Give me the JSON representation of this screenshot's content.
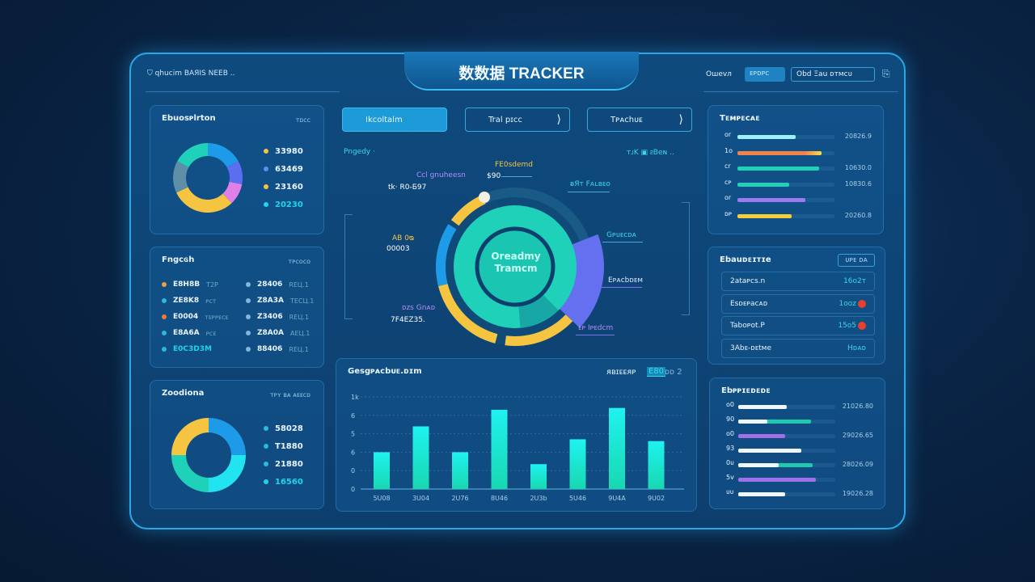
{
  "header": {
    "title": "数数据 TRACKER",
    "left_label": "qhucim BAЯIS NEEB ..",
    "user_label": "Ошеvл",
    "primary_button": "ᴇᴘᴅᴘᴄ",
    "secondary_field": "Obd Ξau  ᴅᴛᴍᴄᴜ"
  },
  "center_tabs": [
    {
      "label": "Ikcoltalm",
      "active": true
    },
    {
      "label": "Tral pɪᴄᴄ",
      "active": false
    },
    {
      "label": "Tᴘᴀᴄhᴜᴇ",
      "active": false
    }
  ],
  "left_panel_1": {
    "title": "Ebuosᴘlrton",
    "subtitle": "ᴛᴅᴄᴄ",
    "legend": [
      {
        "value": "33980",
        "color": "#f5c542"
      },
      {
        "value": "63469",
        "color": "#5b8ef0"
      },
      {
        "value": "23160",
        "color": "#f5c542"
      },
      {
        "value": "20230",
        "color": "#22d3ee"
      }
    ]
  },
  "left_panel_2": {
    "title": "Fngcɢh",
    "subtitle": "ᴛᴘᴄᴏᴄᴏ",
    "left_items": [
      {
        "label": "E8H8B",
        "meta": "T2P",
        "color": "#f0a040"
      },
      {
        "label": "ZE8K8",
        "meta": "ᴘᴄᴛ",
        "color": "#2ab8e0"
      },
      {
        "label": "E0004",
        "meta": "ᴛᴇᴘᴘᴇᴄᴇ",
        "color": "#f07a30"
      },
      {
        "label": "E8A6A",
        "meta": "ᴘᴄᴇ",
        "color": "#2ab8e0"
      },
      {
        "label": "E0C3D3M",
        "meta": "",
        "color": "#2ab8e0"
      }
    ],
    "right_items": [
      {
        "label": "28406",
        "meta": "REЦ.1"
      },
      {
        "label": "Z8A3A",
        "meta": "TECЦ.1"
      },
      {
        "label": "Z3406",
        "meta": "REЦ.1"
      },
      {
        "label": "Z8A0A",
        "meta": "AEЦ.1"
      },
      {
        "label": "88406",
        "meta": "REЦ.1"
      }
    ]
  },
  "left_panel_3": {
    "title": "Zoodiona",
    "subtitle": "ᴛᴘʏ ʙᴀ ᴀᴇᴇᴄᴅ",
    "legend": [
      {
        "value": "58028",
        "color": "#2ab8e0"
      },
      {
        "value": "T1880",
        "color": "#2ab8e0"
      },
      {
        "value": "21880",
        "color": "#2ab8e0"
      },
      {
        "value": "16560",
        "color": "#22d3ee"
      }
    ]
  },
  "center_chart": {
    "header_left": "Pngedy ·",
    "header_right": "ᴛᴊK ▣ ᴤBeɴ ..",
    "center_label_1": "Oreadmy",
    "center_label_2": "Tramcm",
    "labels": {
      "a_title": "Ccl gnuheesn",
      "a_value": "tk· R0-Б97",
      "b_title": "FE0sdemd",
      "b_value": "$90",
      "c_title": "ᴃЯᴛ Fᴀʟʙᴇᴏ",
      "d_title": "Gᴘᴜᴇcᴅᴀ",
      "e_title": "Eᴘᴀcbᴅᴇᴍ",
      "f_title": "ᴇᴘ Iᴘᴇdᴄm",
      "g_title": "AB 0ᴓ",
      "g_value": "00003",
      "h_title": "ᴅᴢs Gnᴀᴅ",
      "h_value": "7F4EZ35."
    }
  },
  "bar_panel": {
    "title": "Gesgᴘᴀᴄbᴜᴇ.ᴅɪm",
    "filter_label": "ᴙʙɪᴇᴇᴙᴘ",
    "filter_value": "E80",
    "filter_extra": "ᴅᴅ 2"
  },
  "right_panel_1": {
    "title": "Tᴇᴍᴘᴇᴄᴀᴇ",
    "rows": [
      {
        "label": "ᴏr",
        "value": "20826.9"
      },
      {
        "label": "1o",
        "value": ""
      },
      {
        "label": "ᴄr",
        "value": "10630.0"
      },
      {
        "label": "ᴄᴘ",
        "value": "10830.6"
      },
      {
        "label": "ᴏr",
        "value": ""
      },
      {
        "label": "ᴅᴘ",
        "value": "20260.8"
      }
    ]
  },
  "right_panel_2": {
    "title": "Ebauᴅᴇɪᴛɪe",
    "button": "ᴜᴘᴇ ᴅᴀ",
    "rows": [
      {
        "label": "2ataᴘcs.n",
        "value": "16o2ᴛ",
        "alert": false
      },
      {
        "label": "Esᴅᴇᴘaᴄᴀᴅ",
        "value": "1ᴏᴏᴢ",
        "alert": true
      },
      {
        "label": "Tabᴏᴘᴏt.P",
        "value": "15o5",
        "alert": true
      },
      {
        "label": "3Abᴇ-ᴅᴇtᴍe",
        "value": "Hᴅᴀᴅ",
        "alert": false
      }
    ]
  },
  "right_panel_3": {
    "title": "Ebᴘᴘɪᴇᴅᴇᴅᴇ",
    "rows": [
      {
        "label": "ᴏ0",
        "value": "21026.80"
      },
      {
        "label": "90",
        "value": ""
      },
      {
        "label": "ᴏ0",
        "value": "29026.65"
      },
      {
        "label": "93",
        "value": ""
      },
      {
        "label": "0ᴜ",
        "value": "28026.09"
      },
      {
        "label": "5ᴠ",
        "value": ""
      },
      {
        "label": "ᴜᴜ",
        "value": "19026.28"
      }
    ]
  },
  "colors": {
    "accent": "#22e3f0",
    "teal": "#1fd1b8",
    "yellow": "#f5c542",
    "indigo": "#6470f0",
    "blue": "#1e9be8",
    "purple": "#a07bf0",
    "orange": "#f0834a",
    "alert": "#e8402c"
  },
  "chart_data": [
    {
      "type": "pie",
      "name": "left-donut-1",
      "values": [
        17,
        11,
        10,
        30,
        15,
        17
      ],
      "colors": [
        "#1e9be8",
        "#5b6ef0",
        "#e07fe8",
        "#f5c542",
        "#5f8fa8",
        "#1fd1b8"
      ]
    },
    {
      "type": "pie",
      "name": "left-donut-2",
      "values": [
        25,
        25,
        25,
        25
      ],
      "colors": [
        "#1e9be8",
        "#22e3f0",
        "#1fd1b8",
        "#f5c542"
      ]
    },
    {
      "type": "pie",
      "name": "center-ring",
      "values": [
        26,
        18,
        15,
        2,
        17,
        13,
        1,
        8
      ],
      "colors": [
        "#1a5a86",
        "#6470f0",
        "#f5c542",
        "transparent",
        "#f5c542",
        "#1e9be8",
        "transparent",
        "#f5c542"
      ]
    },
    {
      "type": "bar",
      "categories": [
        "5U08",
        "3U04",
        "2U76",
        "8U46",
        "2U3b",
        "5U46",
        "9U4A",
        "9U02"
      ],
      "values": [
        2.0,
        3.4,
        2.0,
        4.3,
        1.35,
        2.7,
        4.4,
        2.6
      ],
      "ylim": [
        0,
        5
      ],
      "ytick_labels": [
        "0",
        "0",
        "6",
        "5",
        "6",
        "1k"
      ],
      "grid": true
    },
    {
      "type": "bar",
      "name": "right-bars-1",
      "orientation": "horizontal",
      "values": [
        0.6,
        0.87,
        0.84,
        0.53,
        0.7,
        0.56
      ],
      "colors": [
        "#9ef0f8",
        "#f0834a",
        "#20d0b8",
        "#20d0b8",
        "#9b7bf0",
        "#f5cf3a"
      ]
    },
    {
      "type": "bar",
      "name": "right-bars-2",
      "orientation": "horizontal",
      "series": [
        {
          "values": [
            0.5,
            0.3,
            0.48,
            0.65,
            0.42,
            0.8,
            0.48
          ]
        },
        {
          "values": [
            0,
            0.75,
            0,
            0,
            0.77,
            0,
            0
          ]
        }
      ],
      "colors": [
        "#f0f8ff",
        "#20c8b0",
        "#a070e8"
      ]
    }
  ]
}
